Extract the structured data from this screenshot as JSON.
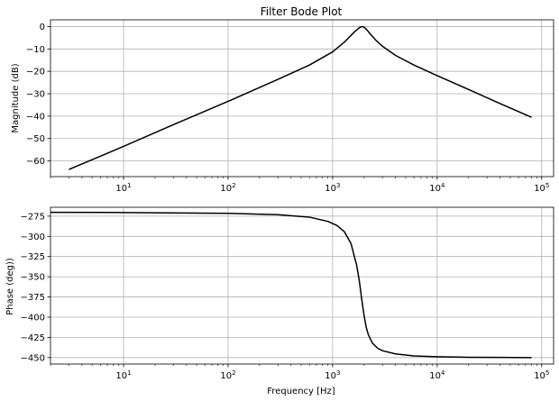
{
  "chart_data": [
    {
      "type": "line",
      "title": "Filter Bode Plot",
      "xlabel": "",
      "ylabel": "Magnitude (dB)",
      "x_scale": "log",
      "xlim": [
        2,
        130000
      ],
      "ylim": [
        -67,
        3
      ],
      "grid": true,
      "x_ticks": [
        10,
        100,
        1000,
        10000,
        100000
      ],
      "x_tick_labels": [
        {
          "base": "10",
          "exp": "1"
        },
        {
          "base": "10",
          "exp": "2"
        },
        {
          "base": "10",
          "exp": "3"
        },
        {
          "base": "10",
          "exp": "4"
        },
        {
          "base": "10",
          "exp": "5"
        }
      ],
      "y_ticks": [
        0,
        -10,
        -20,
        -30,
        -40,
        -50,
        -60
      ],
      "y_tick_labels": [
        "0",
        "−10",
        "−20",
        "−30",
        "−40",
        "−50",
        "−60"
      ],
      "line_color": "#000000",
      "series": [
        {
          "x": [
            3,
            10,
            30,
            100,
            300,
            600,
            1000,
            1300,
            1600,
            1800,
            1900,
            2000,
            2100,
            2300,
            2600,
            3000,
            4000,
            6000,
            10000,
            20000,
            40000,
            80000
          ],
          "y": [
            -63.8,
            -53.5,
            -43.8,
            -33.4,
            -23.6,
            -17.2,
            -11.3,
            -6.9,
            -2.6,
            -0.5,
            0,
            -0.3,
            -1.2,
            -3.4,
            -6.2,
            -8.8,
            -12.9,
            -17.2,
            -21.9,
            -28.1,
            -34.4,
            -40.5
          ]
        }
      ]
    },
    {
      "type": "line",
      "title": "",
      "xlabel": "Frequency [Hz]",
      "ylabel": "Phase (deg))",
      "x_scale": "log",
      "xlim": [
        2,
        130000
      ],
      "ylim": [
        -458,
        -264
      ],
      "grid": true,
      "x_ticks": [
        10,
        100,
        1000,
        10000,
        100000
      ],
      "x_tick_labels": [
        {
          "base": "10",
          "exp": "1"
        },
        {
          "base": "10",
          "exp": "2"
        },
        {
          "base": "10",
          "exp": "3"
        },
        {
          "base": "10",
          "exp": "4"
        },
        {
          "base": "10",
          "exp": "5"
        }
      ],
      "y_ticks": [
        -275,
        -300,
        -325,
        -350,
        -375,
        -400,
        -425,
        -450
      ],
      "y_tick_labels": [
        "−275",
        "−300",
        "−325",
        "−350",
        "−375",
        "−400",
        "−425",
        "−450"
      ],
      "line_color": "#000000",
      "series": [
        {
          "x": [
            2,
            10,
            100,
            300,
            600,
            900,
            1100,
            1300,
            1500,
            1700,
            1800,
            1900,
            2000,
            2100,
            2200,
            2400,
            2700,
            3000,
            4000,
            6000,
            10000,
            20000,
            40000,
            80000
          ],
          "y": [
            -270.3,
            -270.5,
            -271.5,
            -273.2,
            -276.2,
            -281.5,
            -286.5,
            -294.5,
            -309,
            -336,
            -355,
            -378,
            -398,
            -413,
            -422,
            -432,
            -438.5,
            -441.5,
            -445.5,
            -448,
            -449,
            -449.6,
            -449.8,
            -450
          ]
        }
      ]
    }
  ]
}
